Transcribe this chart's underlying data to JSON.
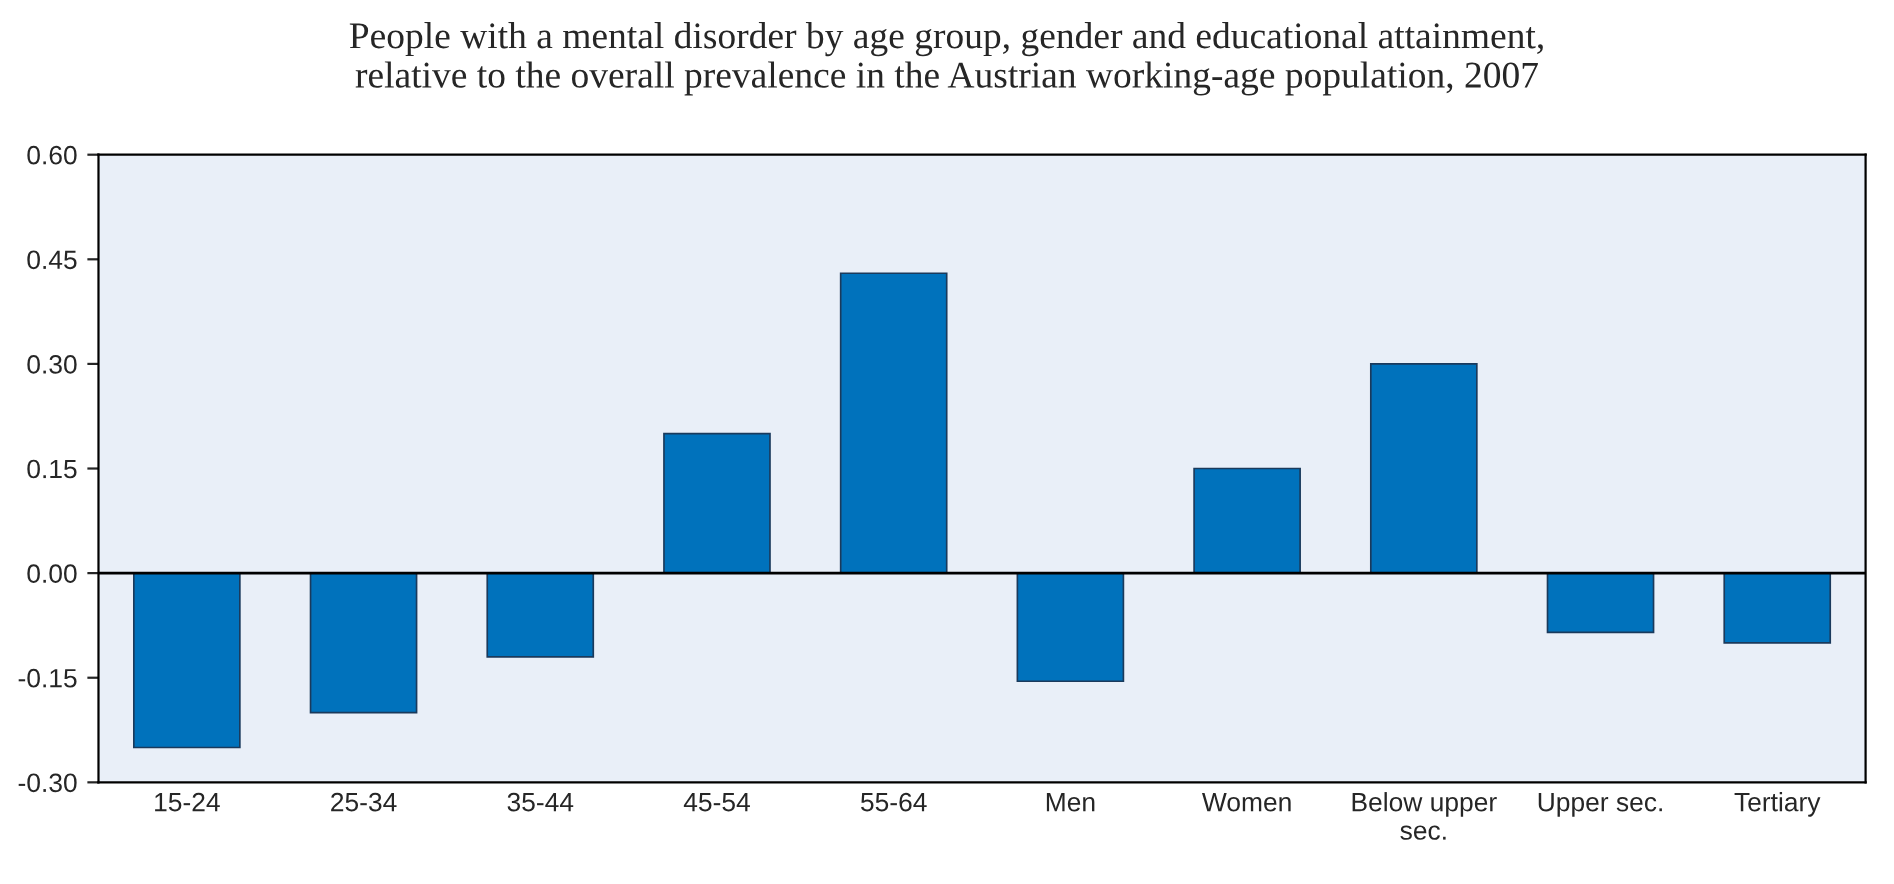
{
  "chart_data": {
    "type": "bar",
    "title": "People with a mental disorder by age group, gender and educational attainment,\nrelative to the overall prevalence in the Austrian working-age population, 2007",
    "categories": [
      "15-24",
      "25-34",
      "35-44",
      "45-54",
      "55-64",
      "Men",
      "Women",
      "Below upper\nsec.",
      "Upper sec.",
      "Tertiary"
    ],
    "values": [
      -0.25,
      -0.2,
      -0.12,
      0.2,
      0.43,
      -0.155,
      0.15,
      0.3,
      -0.085,
      -0.1
    ],
    "color": "#0072bc",
    "ylim": [
      -0.3,
      0.6
    ],
    "yticks": [
      {
        "value": -0.3,
        "label": "-0.30"
      },
      {
        "value": -0.15,
        "label": "-0.15"
      },
      {
        "value": 0,
        "label": "0.00"
      },
      {
        "value": 0.15,
        "label": "0.15"
      },
      {
        "value": 0.3,
        "label": "0.30"
      },
      {
        "value": 0.45,
        "label": "0.45"
      },
      {
        "value": 0.6,
        "label": "0.60"
      }
    ],
    "ref_lines": [
      {
        "axis": "y",
        "value": 0,
        "color": "#000000"
      }
    ],
    "grid": false
  }
}
